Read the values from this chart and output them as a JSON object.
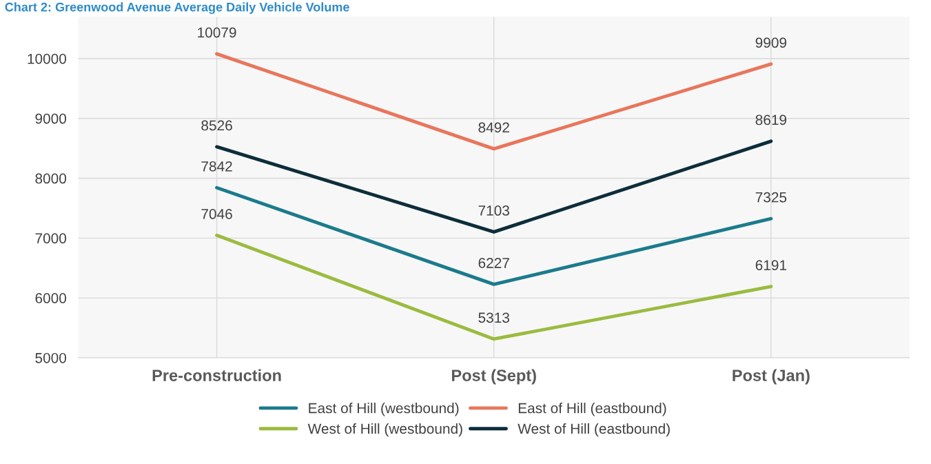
{
  "chart_data": {
    "type": "line",
    "title": "Chart 2: Greenwood Avenue Average Daily Vehicle Volume",
    "categories": [
      "Pre-construction",
      "Post (Sept)",
      "Post (Jan)"
    ],
    "series": [
      {
        "name": "East of Hill (westbound)",
        "color": "#1b7b8c",
        "values": [
          7842,
          6227,
          7325
        ]
      },
      {
        "name": "East of Hill (eastbound)",
        "color": "#e8765c",
        "values": [
          10079,
          8492,
          9909
        ]
      },
      {
        "name": "West of Hill (westbound)",
        "color": "#9bbb3f",
        "values": [
          7046,
          5313,
          6191
        ]
      },
      {
        "name": "West of Hill (eastbound)",
        "color": "#0d2d3a",
        "values": [
          8526,
          7103,
          8619
        ]
      }
    ],
    "ylim": [
      5000,
      10700
    ],
    "yticks": [
      5000,
      6000,
      7000,
      8000,
      9000,
      10000
    ],
    "grid": true,
    "legend": "bottom",
    "data_labels": true,
    "marker": "none",
    "line_style": "solid"
  }
}
